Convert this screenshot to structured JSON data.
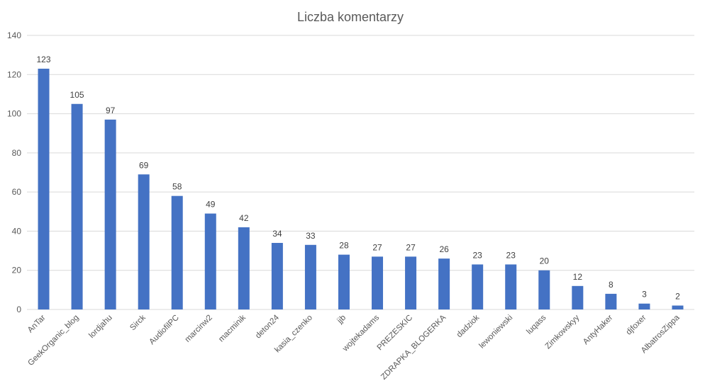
{
  "chart_data": {
    "type": "bar",
    "title": "Liczba komentarzy",
    "xlabel": "",
    "ylabel": "",
    "ylim": [
      0,
      140
    ],
    "yticks": [
      0,
      20,
      40,
      60,
      80,
      100,
      120,
      140
    ],
    "grid": true,
    "legend": "none",
    "bar_color": "#4472c4",
    "categories": [
      "AnTar",
      "GeekOrganic_blog",
      "lordjahu",
      "Sirck",
      "AudiofilPC",
      "marcinw2",
      "macminik",
      "deton24",
      "kasia_czenko",
      "jjb",
      "wojtekadams",
      "PREZESKIC",
      "ZDRAPKA_BLOGERKA",
      "dadziok",
      "lewoniewski",
      "luqass",
      "Zimkowskyy",
      "AntyHaker",
      "djfoxer",
      "AlbatrosZippa"
    ],
    "values": [
      123,
      105,
      97,
      69,
      58,
      49,
      42,
      34,
      33,
      28,
      27,
      27,
      26,
      23,
      23,
      20,
      12,
      8,
      3,
      2
    ]
  }
}
